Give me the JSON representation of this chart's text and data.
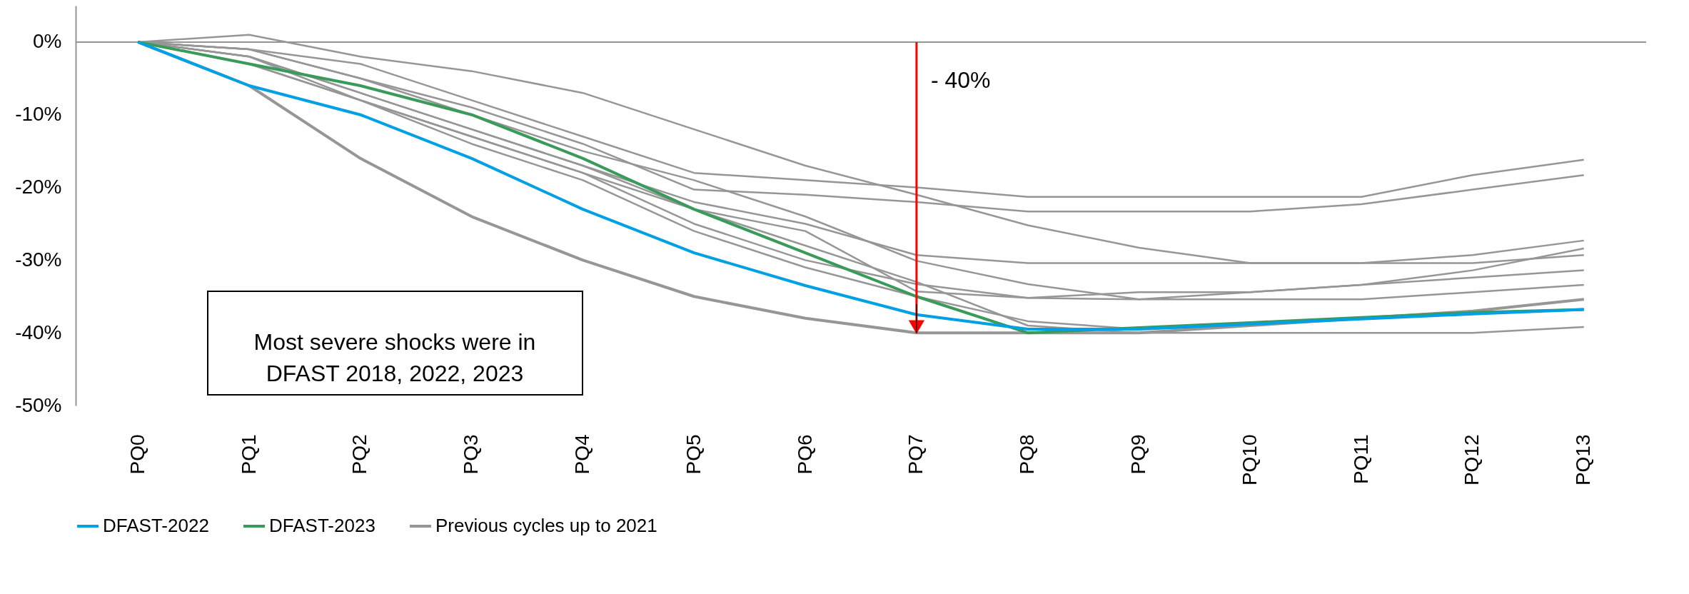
{
  "chart_data": {
    "type": "line",
    "categories": [
      "PQ0",
      "PQ1",
      "PQ2",
      "PQ3",
      "PQ4",
      "PQ5",
      "PQ6",
      "PQ7",
      "PQ8",
      "PQ9",
      "PQ10",
      "PQ11",
      "PQ12",
      "PQ13"
    ],
    "ylim": [
      -50,
      5
    ],
    "yticks": [
      {
        "value": -50,
        "label": "-50%"
      },
      {
        "value": -40,
        "label": "-40%"
      },
      {
        "value": -30,
        "label": "-30%"
      },
      {
        "value": -20,
        "label": "-20%"
      },
      {
        "value": -10,
        "label": "-10%"
      },
      {
        "value": 0,
        "label": "0%"
      }
    ],
    "legend": "bottom",
    "line_style": "solid",
    "marker": "none",
    "series": [
      {
        "name": "DFAST-2022",
        "color": "#00a0e4",
        "values": [
          0,
          -6,
          -10,
          -16,
          -23,
          -29,
          -33.5,
          -37.5,
          -39.5,
          -39.5,
          -38.8,
          -38.1,
          -37.4,
          -36.8
        ]
      },
      {
        "name": "DFAST-2023",
        "color": "#3a9a5a",
        "values": [
          0,
          -3,
          -6,
          -10,
          -16,
          -23,
          -29,
          -35,
          -40,
          -39.3,
          -38.6,
          -37.9,
          -37.2,
          -36.8
        ]
      },
      {
        "name": "Previous cycles up to 2021",
        "color": "#969696",
        "values": [
          0,
          -6,
          -16,
          -24,
          -30,
          -35,
          -38,
          -40,
          -40,
          -40,
          -39,
          -38,
          -37,
          -35.4
        ]
      },
      {
        "color": "#969696",
        "values": [
          0,
          -1,
          -3,
          -8,
          -13,
          -18,
          -19,
          -20,
          -21.3,
          -21.3,
          -21.3,
          -21.3,
          -18.3,
          -16.2
        ]
      },
      {
        "color": "#969696",
        "values": [
          0,
          -1,
          -5,
          -9,
          -14,
          -20.3,
          -21,
          -22,
          -23.3,
          -23.3,
          -23.3,
          -22.3,
          -20.3,
          -18.3
        ]
      },
      {
        "color": "#969696",
        "values": [
          0,
          1,
          -2,
          -4,
          -7,
          -12,
          -17,
          -21,
          -25.2,
          -28.3,
          -30.4,
          -30.4,
          -29.3,
          -27.3
        ]
      },
      {
        "color": "#969696",
        "values": [
          0,
          -2,
          -7,
          -12,
          -17,
          -22,
          -25,
          -29.3,
          -30.4,
          -30.4,
          -30.4,
          -30.4,
          -30.4,
          -29.3
        ]
      },
      {
        "color": "#969696",
        "values": [
          0,
          -1,
          -5,
          -10,
          -15,
          -19,
          -24,
          -30.1,
          -33.3,
          -35.4,
          -34.4,
          -33.4,
          -31.4,
          -28.4
        ]
      },
      {
        "color": "#969696",
        "values": [
          0,
          -2,
          -8,
          -13,
          -18,
          -25,
          -30,
          -33.3,
          -35.2,
          -34.4,
          -34.4,
          -33.4,
          -32.4,
          -31.4
        ]
      },
      {
        "color": "#969696",
        "values": [
          0,
          -2,
          -7,
          -12,
          -17,
          -23,
          -26,
          -34.3,
          -35.2,
          -35.4,
          -35.4,
          -35.4,
          -34.4,
          -33.4
        ]
      },
      {
        "color": "#969696",
        "values": [
          0,
          -3,
          -8,
          -14,
          -19,
          -26,
          -31,
          -35,
          -38.4,
          -39.5,
          -39,
          -38,
          -37,
          -35.4
        ]
      },
      {
        "color": "#969696",
        "values": [
          0,
          -3,
          -8,
          -13,
          -18,
          -23,
          -28,
          -33,
          -39,
          -40,
          -40,
          -40,
          -40,
          -39.2
        ]
      }
    ],
    "annotations": [
      {
        "text": "- 40%",
        "x": "PQ7",
        "y": -40
      },
      "Most severe shocks were in\nDFAST 2018, 2022, 2023"
    ]
  }
}
